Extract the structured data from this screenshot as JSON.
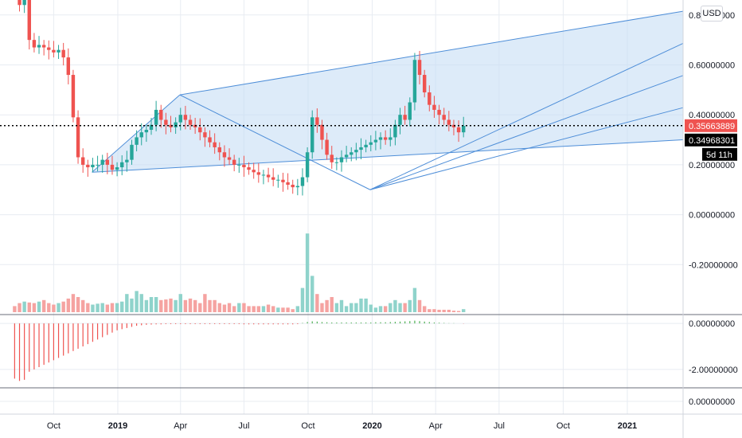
{
  "currency_button": "USD",
  "chart_data": [
    {
      "type": "candlestick",
      "title": "",
      "x_start": "2018-08-06",
      "interval_days": 7,
      "xlim": [
        "2018-07-16",
        "2021-03-22"
      ],
      "ylim": [
        -0.4,
        0.86
      ],
      "x_ticks": [
        {
          "date": "2018-10-01",
          "label": "Oct",
          "bold": false
        },
        {
          "date": "2019-01-01",
          "label": "2019",
          "bold": true
        },
        {
          "date": "2019-04-01",
          "label": "Apr",
          "bold": false
        },
        {
          "date": "2019-07-01",
          "label": "Jul",
          "bold": false
        },
        {
          "date": "2019-10-01",
          "label": "Oct",
          "bold": false
        },
        {
          "date": "2020-01-01",
          "label": "2020",
          "bold": true
        },
        {
          "date": "2020-04-01",
          "label": "Apr",
          "bold": false
        },
        {
          "date": "2020-07-01",
          "label": "Jul",
          "bold": false
        },
        {
          "date": "2020-10-01",
          "label": "Oct",
          "bold": false
        },
        {
          "date": "2021-01-01",
          "label": "2021",
          "bold": true
        }
      ],
      "y_ticks": [
        {
          "value": 0.8,
          "label": "0.80000000"
        },
        {
          "value": 0.6,
          "label": "0.60000000"
        },
        {
          "value": 0.4,
          "label": "0.40000000"
        },
        {
          "value": 0.2,
          "label": "0.20000000"
        },
        {
          "value": 0.0,
          "label": "0.00000000"
        },
        {
          "value": -0.2,
          "label": "-0.20000000"
        }
      ],
      "price_labels": {
        "last": "0.35663889",
        "other": "0.34968301",
        "countdown": "5d 11h"
      },
      "last_price": 0.35663889,
      "other_price": 0.34968301,
      "closes": [
        0.92,
        0.84,
        0.88,
        0.7,
        0.67,
        0.68,
        0.67,
        0.66,
        0.65,
        0.66,
        0.63,
        0.56,
        0.39,
        0.23,
        0.2,
        0.19,
        0.2,
        0.2,
        0.22,
        0.2,
        0.18,
        0.19,
        0.21,
        0.22,
        0.28,
        0.31,
        0.33,
        0.34,
        0.36,
        0.42,
        0.38,
        0.36,
        0.35,
        0.37,
        0.4,
        0.38,
        0.36,
        0.35,
        0.33,
        0.31,
        0.29,
        0.27,
        0.25,
        0.23,
        0.22,
        0.2,
        0.2,
        0.19,
        0.18,
        0.17,
        0.16,
        0.16,
        0.15,
        0.14,
        0.14,
        0.13,
        0.12,
        0.11,
        0.115,
        0.15,
        0.25,
        0.39,
        0.36,
        0.3,
        0.24,
        0.21,
        0.21,
        0.23,
        0.24,
        0.25,
        0.26,
        0.27,
        0.28,
        0.29,
        0.3,
        0.31,
        0.3,
        0.31,
        0.36,
        0.4,
        0.38,
        0.45,
        0.62,
        0.56,
        0.49,
        0.44,
        0.42,
        0.4,
        0.38,
        0.36,
        0.35,
        0.33,
        0.356
      ],
      "volumes": [
        0.02,
        0.03,
        0.035,
        0.032,
        0.03,
        0.035,
        0.04,
        0.03,
        0.025,
        0.03,
        0.035,
        0.045,
        0.06,
        0.05,
        0.04,
        0.03,
        0.025,
        0.028,
        0.03,
        0.025,
        0.03,
        0.03,
        0.035,
        0.06,
        0.045,
        0.07,
        0.06,
        0.04,
        0.05,
        0.05,
        0.04,
        0.042,
        0.045,
        0.04,
        0.06,
        0.04,
        0.045,
        0.04,
        0.03,
        0.06,
        0.04,
        0.04,
        0.03,
        0.025,
        0.03,
        0.02,
        0.03,
        0.03,
        0.02,
        0.02,
        0.02,
        0.02,
        0.025,
        0.02,
        0.015,
        0.015,
        0.015,
        0.01,
        0.02,
        0.08,
        0.26,
        0.12,
        0.06,
        0.03,
        0.04,
        0.05,
        0.03,
        0.04,
        0.02,
        0.03,
        0.03,
        0.045,
        0.045,
        0.025,
        0.015,
        0.02,
        0.02,
        0.03,
        0.04,
        0.03,
        0.03,
        0.04,
        0.08,
        0.04,
        0.02,
        0.01,
        0.01,
        0.008,
        0.008,
        0.008,
        0.005,
        0.004,
        0.01
      ],
      "channel": {
        "upper_start": {
          "date": "2019-03-31",
          "value": 0.48
        },
        "upper_end": {
          "date": "2021-03-22",
          "value": 0.815
        },
        "lower_start": {
          "date": "2018-11-25",
          "value": 0.17
        },
        "lower_end": {
          "date": "2021-03-22",
          "value": 0.3
        },
        "inner_lines": [
          0.25,
          0.5,
          0.75
        ],
        "fan_from": {
          "date": "2019-12-29",
          "value": 0.1
        }
      }
    },
    {
      "type": "bar",
      "title": "",
      "ylim": [
        -2.8,
        0.35
      ],
      "y_ticks": [
        {
          "value": 0.0,
          "label": "0.00000000"
        },
        {
          "value": -2.0,
          "label": "-2.00000000"
        }
      ],
      "values": [
        -2.4,
        -2.5,
        -2.45,
        -2.1,
        -2.0,
        -1.9,
        -1.8,
        -1.7,
        -1.6,
        -1.5,
        -1.4,
        -1.3,
        -1.2,
        -1.1,
        -1.0,
        -0.9,
        -0.8,
        -0.7,
        -0.6,
        -0.5,
        -0.4,
        -0.3,
        -0.25,
        -0.2,
        -0.15,
        -0.1,
        -0.08,
        -0.06,
        -0.05,
        -0.04,
        -0.04,
        -0.03,
        -0.03,
        -0.03,
        -0.03,
        -0.03,
        -0.03,
        -0.03,
        -0.03,
        -0.03,
        -0.03,
        -0.03,
        -0.03,
        -0.03,
        -0.03,
        -0.03,
        -0.03,
        -0.04,
        -0.04,
        -0.04,
        -0.04,
        -0.04,
        -0.04,
        -0.04,
        -0.04,
        -0.04,
        -0.04,
        -0.04,
        -0.03,
        0.02,
        0.06,
        0.09,
        0.08,
        0.06,
        0.05,
        0.04,
        0.04,
        0.04,
        0.04,
        0.04,
        0.04,
        0.04,
        0.04,
        0.04,
        0.05,
        0.05,
        0.05,
        0.06,
        0.07,
        0.08,
        0.09,
        0.1,
        0.12,
        0.1,
        0.08,
        0.06,
        0.04,
        0.03,
        0.02,
        0.01,
        0.01,
        0.0,
        -0.01
      ]
    },
    {
      "type": "line",
      "title": "",
      "y_ticks": [
        {
          "value": 0.0,
          "label": "0.00000000"
        }
      ]
    }
  ],
  "colors": {
    "up": "#26a69a",
    "down": "#ef5350",
    "up_volume": "#8fd3cb",
    "down_volume": "#f5a3a1",
    "osc_up": "#4caf50",
    "osc_down": "#ef5350",
    "channel_fill": "#c6ddf5",
    "channel_line": "#4e8ed8",
    "grid": "#e8ecf2",
    "axis_text": "#131722",
    "last_price_bg": "#ef5350",
    "other_price_bg": "#000000"
  }
}
